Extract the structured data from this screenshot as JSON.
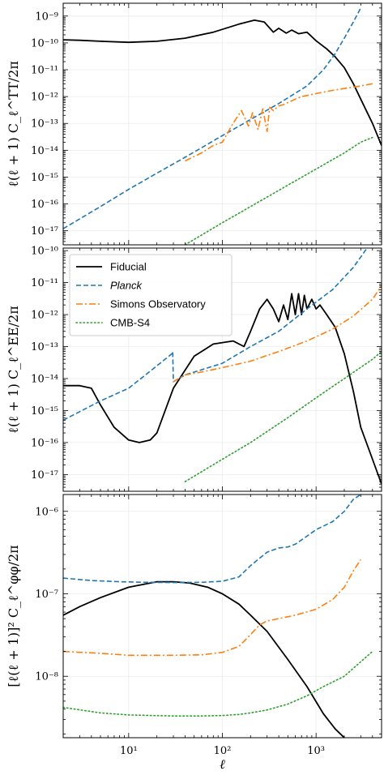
{
  "chart_data": [
    {
      "type": "line",
      "panel": "TT",
      "ylabel": "ℓ(ℓ + 1) C_ℓ^TT/2π",
      "xlabel": "",
      "xscale": "log",
      "yscale": "log",
      "xlim": [
        2,
        5000
      ],
      "ylim": [
        3e-18,
        3e-09
      ],
      "yticks": [
        {
          "value": 1e-17,
          "label": "10⁻¹⁷"
        },
        {
          "value": 1e-16,
          "label": "10⁻¹⁶"
        },
        {
          "value": 1e-15,
          "label": "10⁻¹⁵"
        },
        {
          "value": 1e-14,
          "label": "10⁻¹⁴"
        },
        {
          "value": 1e-13,
          "label": "10⁻¹³"
        },
        {
          "value": 1e-12,
          "label": "10⁻¹²"
        },
        {
          "value": 1e-11,
          "label": "10⁻¹¹"
        },
        {
          "value": 1e-10,
          "label": "10⁻¹⁰"
        },
        {
          "value": 1e-09,
          "label": "10⁻⁹"
        }
      ],
      "grid": true,
      "series": [
        {
          "color": "#000000",
          "dash": "solid",
          "x": [
            2,
            3,
            5,
            10,
            20,
            40,
            80,
            150,
            220,
            280,
            350,
            400,
            480,
            550,
            650,
            800,
            1000,
            1300,
            1600,
            2000,
            2500,
            3000,
            4000,
            5000
          ],
          "y": [
            1.3e-10,
            1.25e-10,
            1.15e-10,
            1.05e-10,
            1.15e-10,
            1.5e-10,
            2.5e-10,
            5e-10,
            7e-10,
            6e-10,
            2.5e-10,
            3.5e-10,
            2.3e-10,
            3e-10,
            2.2e-10,
            2.5e-10,
            1.2e-10,
            6e-11,
            3e-11,
            1.2e-11,
            3e-12,
            8e-13,
            1e-13,
            1.5e-14
          ]
        },
        {
          "color": "#1f77b4",
          "dash": "dashed",
          "x": [
            2,
            5,
            10,
            20,
            40,
            100,
            200,
            400,
            800,
            1200,
            1600,
            2000,
            2500,
            3000
          ],
          "y": [
            1.2e-17,
            8e-17,
            3.5e-16,
            1.4e-15,
            5.5e-15,
            3.5e-14,
            1.4e-13,
            5.5e-13,
            2.5e-12,
            1e-11,
            4e-11,
            1.5e-10,
            6e-10,
            2e-09
          ]
        },
        {
          "color": "#ff7f0e",
          "dash": "dashdot",
          "x": [
            40,
            60,
            80,
            100,
            130,
            160,
            190,
            210,
            240,
            270,
            300,
            320,
            350,
            400,
            450,
            500,
            600,
            700,
            800,
            1000,
            1500,
            2000,
            3000,
            4000
          ],
          "y": [
            4e-15,
            8e-15,
            1.5e-14,
            2e-14,
            1e-13,
            3e-13,
            8e-14,
            2.5e-13,
            6e-14,
            3.5e-13,
            5e-14,
            4e-13,
            3e-13,
            4.5e-13,
            5e-13,
            6e-13,
            8e-13,
            1e-12,
            1.1e-12,
            1.3e-12,
            1.7e-12,
            2e-12,
            2.5e-12,
            3e-12
          ]
        },
        {
          "color": "#2ca02c",
          "dash": "dotted",
          "x": [
            40,
            100,
            200,
            500,
            1000,
            2000,
            3000,
            4000
          ],
          "y": [
            3e-18,
            2e-17,
            8e-17,
            5e-16,
            2e-15,
            8e-15,
            2e-14,
            3e-14
          ]
        }
      ]
    },
    {
      "type": "line",
      "panel": "EE",
      "ylabel": "ℓ(ℓ + 1) C_ℓ^EE/2π",
      "xlabel": "",
      "xscale": "log",
      "yscale": "log",
      "xlim": [
        2,
        5000
      ],
      "ylim": [
        3e-18,
        1.2e-10
      ],
      "yticks": [
        {
          "value": 1e-17,
          "label": "10⁻¹⁷"
        },
        {
          "value": 1e-16,
          "label": "10⁻¹⁶"
        },
        {
          "value": 1e-15,
          "label": "10⁻¹⁵"
        },
        {
          "value": 1e-14,
          "label": "10⁻¹⁴"
        },
        {
          "value": 1e-13,
          "label": "10⁻¹³"
        },
        {
          "value": 1e-12,
          "label": "10⁻¹²"
        },
        {
          "value": 1e-11,
          "label": "10⁻¹¹"
        },
        {
          "value": 1e-10,
          "label": "10⁻¹⁰"
        }
      ],
      "grid": true,
      "legend": {
        "placement": "upper-left",
        "entries": [
          {
            "label": "Fiducial",
            "color": "#000000",
            "dash": "solid",
            "italic": false
          },
          {
            "label": "Planck",
            "color": "#1f77b4",
            "dash": "dashed",
            "italic": true
          },
          {
            "label": "Simons Observatory",
            "color": "#ff7f0e",
            "dash": "dashdot",
            "italic": false
          },
          {
            "label": "CMB-S4",
            "color": "#2ca02c",
            "dash": "dotted",
            "italic": false
          }
        ]
      },
      "series": [
        {
          "color": "#000000",
          "dash": "solid",
          "x": [
            2,
            3,
            4,
            5,
            7,
            10,
            13,
            17,
            20,
            30,
            50,
            80,
            130,
            170,
            200,
            250,
            300,
            350,
            400,
            450,
            500,
            550,
            600,
            650,
            700,
            750,
            800,
            900,
            1000,
            1100,
            1300,
            1600,
            2000,
            2500,
            3000,
            4000,
            5000
          ],
          "y": [
            6e-15,
            6e-15,
            5e-15,
            1.5e-15,
            3e-16,
            1.2e-16,
            1e-16,
            1.2e-16,
            2e-16,
            5e-15,
            5e-14,
            1.2e-13,
            1.5e-13,
            1e-13,
            3e-13,
            1.5e-12,
            3e-12,
            1.5e-12,
            6e-13,
            2e-12,
            7e-13,
            4.5e-12,
            1e-12,
            4.5e-12,
            1e-12,
            4e-12,
            1.5e-12,
            3e-12,
            1.5e-12,
            2e-12,
            1e-12,
            4e-13,
            6e-14,
            4e-15,
            3e-16,
            3e-17,
            5e-18
          ]
        },
        {
          "color": "#1f77b4",
          "dash": "dashed",
          "x": [
            2,
            5,
            10,
            20,
            29,
            29.5,
            30,
            40,
            100,
            200,
            400,
            800,
            1500,
            2500,
            3500
          ],
          "y": [
            5e-16,
            2e-15,
            5e-15,
            2.5e-14,
            6e-14,
            7e-14,
            8e-15,
            1.3e-14,
            3e-14,
            1e-13,
            3e-13,
            1.5e-12,
            6e-12,
            3e-11,
            1.2e-10
          ]
        },
        {
          "color": "#ff7f0e",
          "dash": "dashdot",
          "x": [
            30,
            40,
            60,
            100,
            200,
            400,
            800,
            1500,
            2500,
            4000,
            5000
          ],
          "y": [
            8e-15,
            1.3e-14,
            1.6e-14,
            2.2e-14,
            3.5e-14,
            7e-14,
            1.5e-13,
            3.5e-13,
            9e-13,
            3e-12,
            8e-12
          ]
        },
        {
          "color": "#2ca02c",
          "dash": "dotted",
          "x": [
            40,
            100,
            200,
            500,
            1000,
            2000,
            4000,
            5000
          ],
          "y": [
            6e-18,
            3e-17,
            1e-16,
            6e-16,
            2.5e-15,
            1e-14,
            4e-14,
            7e-14
          ]
        }
      ]
    },
    {
      "type": "line",
      "panel": "phiphi",
      "ylabel": "[ℓ(ℓ + 1)]² C_ℓ^φφ/2π",
      "xlabel": "ℓ",
      "xscale": "log",
      "yscale": "log",
      "xlim": [
        2,
        5000
      ],
      "ylim": [
        1.8e-09,
        1.6e-06
      ],
      "xticks": [
        {
          "value": 10,
          "label": "10¹"
        },
        {
          "value": 100,
          "label": "10²"
        },
        {
          "value": 1000,
          "label": "10³"
        }
      ],
      "yticks": [
        {
          "value": 1e-08,
          "label": "10⁻⁸"
        },
        {
          "value": 1e-07,
          "label": "10⁻⁷"
        },
        {
          "value": 1e-06,
          "label": "10⁻⁶"
        }
      ],
      "grid": true,
      "series": [
        {
          "color": "#000000",
          "dash": "solid",
          "x": [
            2,
            3,
            5,
            10,
            20,
            30,
            45,
            70,
            100,
            150,
            200,
            300,
            500,
            800,
            1200,
            1600,
            2000
          ],
          "y": [
            5.5e-08,
            7e-08,
            9e-08,
            1.2e-07,
            1.4e-07,
            1.4e-07,
            1.35e-07,
            1.2e-07,
            1e-07,
            7.5e-08,
            5.5e-08,
            3.5e-08,
            1.6e-08,
            7.5e-09,
            3.5e-09,
            2.3e-09,
            1.8e-09
          ]
        },
        {
          "color": "#1f77b4",
          "dash": "dashed",
          "x": [
            2,
            4,
            8,
            15,
            30,
            60,
            100,
            150,
            200,
            300,
            400,
            500,
            600,
            800,
            1000,
            1500,
            2000,
            2500,
            3000
          ],
          "y": [
            1.55e-07,
            1.45e-07,
            1.4e-07,
            1.38e-07,
            1.37e-07,
            1.38e-07,
            1.42e-07,
            1.6e-07,
            2.2e-07,
            3.2e-07,
            3.6e-07,
            3.7e-07,
            4e-07,
            5e-07,
            6e-07,
            7.5e-07,
            1e-06,
            1.4e-06,
            1.6e-06
          ]
        },
        {
          "color": "#ff7f0e",
          "dash": "dashdot",
          "x": [
            2,
            5,
            10,
            30,
            60,
            100,
            150,
            200,
            250,
            300,
            400,
            600,
            1000,
            1500,
            2000,
            2500,
            3000
          ],
          "y": [
            2e-08,
            1.9e-08,
            1.8e-08,
            1.8e-08,
            1.82e-08,
            1.95e-08,
            2.3e-08,
            3.2e-08,
            4.2e-08,
            4.7e-08,
            5e-08,
            5.5e-08,
            6.5e-08,
            8.5e-08,
            1.2e-07,
            1.9e-07,
            2.6e-07
          ]
        },
        {
          "color": "#2ca02c",
          "dash": "dotted",
          "x": [
            2,
            5,
            10,
            30,
            60,
            100,
            150,
            200,
            300,
            500,
            800,
            1200,
            2000,
            3000,
            4000
          ],
          "y": [
            4.2e-09,
            3.6e-09,
            3.4e-09,
            3.3e-09,
            3.3e-09,
            3.35e-09,
            3.45e-09,
            3.6e-09,
            3.9e-09,
            4.6e-09,
            5.8e-09,
            7.5e-09,
            1e-08,
            1.5e-08,
            2e-08
          ]
        }
      ]
    }
  ]
}
